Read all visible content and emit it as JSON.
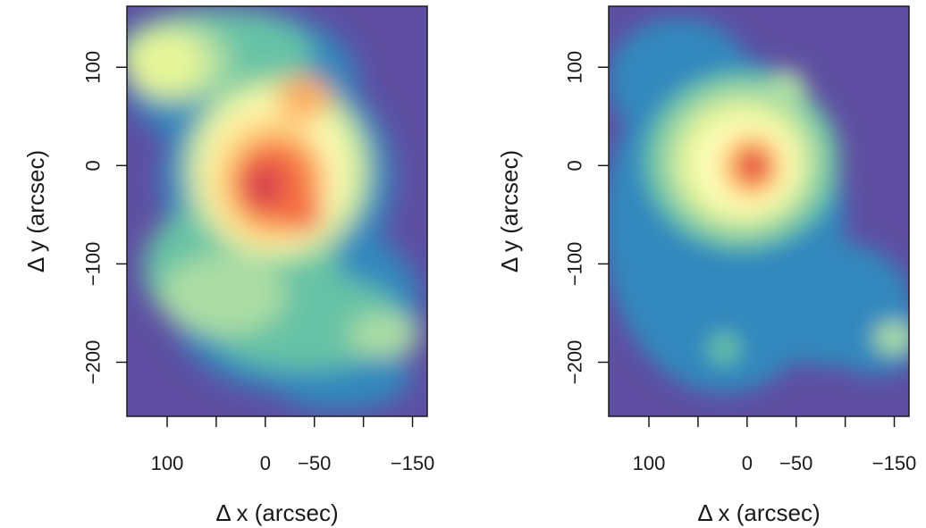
{
  "chart_data": [
    {
      "type": "heatmap",
      "title": "",
      "xlabel": "Δ x (arcsec)",
      "ylabel": "Δ y (arcsec)",
      "xlim": [
        141,
        -165
      ],
      "ylim": [
        -255,
        162
      ],
      "x_ticks": [
        100,
        50,
        0,
        -50,
        -100,
        -150
      ],
      "x_tick_labels": [
        "100",
        "",
        "0",
        "−50",
        "",
        "−150"
      ],
      "y_ticks": [
        100,
        0,
        -100,
        -200
      ],
      "y_tick_labels": [
        "100",
        "0",
        "−100",
        "−200"
      ],
      "colorscale": [
        "#5e4fa2",
        "#3288bd",
        "#66c2a5",
        "#abdda4",
        "#e6f598",
        "#ffffbf",
        "#fee08b",
        "#fdae61",
        "#f46d43",
        "#d53e4f"
      ],
      "peaks": [
        {
          "x": 2,
          "y": -22,
          "value": 1.0
        },
        {
          "x": -45,
          "y": -45,
          "value": 0.85
        },
        {
          "x": -35,
          "y": 70,
          "value": 0.72
        },
        {
          "x": 120,
          "y": 115,
          "value": 0.55
        },
        {
          "x": -120,
          "y": -170,
          "value": 0.45
        },
        {
          "x": 30,
          "y": -150,
          "value": 0.4
        }
      ]
    },
    {
      "type": "heatmap",
      "title": "",
      "xlabel": "Δ x (arcsec)",
      "ylabel": "Δ y (arcsec)",
      "xlim": [
        141,
        -165
      ],
      "ylim": [
        -255,
        162
      ],
      "x_ticks": [
        100,
        50,
        0,
        -50,
        -100,
        -150
      ],
      "x_tick_labels": [
        "100",
        "",
        "0",
        "−50",
        "",
        "−150"
      ],
      "y_ticks": [
        100,
        0,
        -100,
        -200
      ],
      "y_tick_labels": [
        "100",
        "0",
        "−100",
        "−200"
      ],
      "colorscale": [
        "#5e4fa2",
        "#3288bd",
        "#66c2a5",
        "#abdda4",
        "#e6f598",
        "#ffffbf",
        "#fee08b",
        "#fdae61",
        "#f46d43",
        "#d53e4f"
      ],
      "peaks": [
        {
          "x": -5,
          "y": 0,
          "value": 1.0
        },
        {
          "x": -35,
          "y": 80,
          "value": 0.5
        },
        {
          "x": 25,
          "y": -188,
          "value": 0.4
        },
        {
          "x": -150,
          "y": -172,
          "value": 0.45
        }
      ]
    }
  ]
}
